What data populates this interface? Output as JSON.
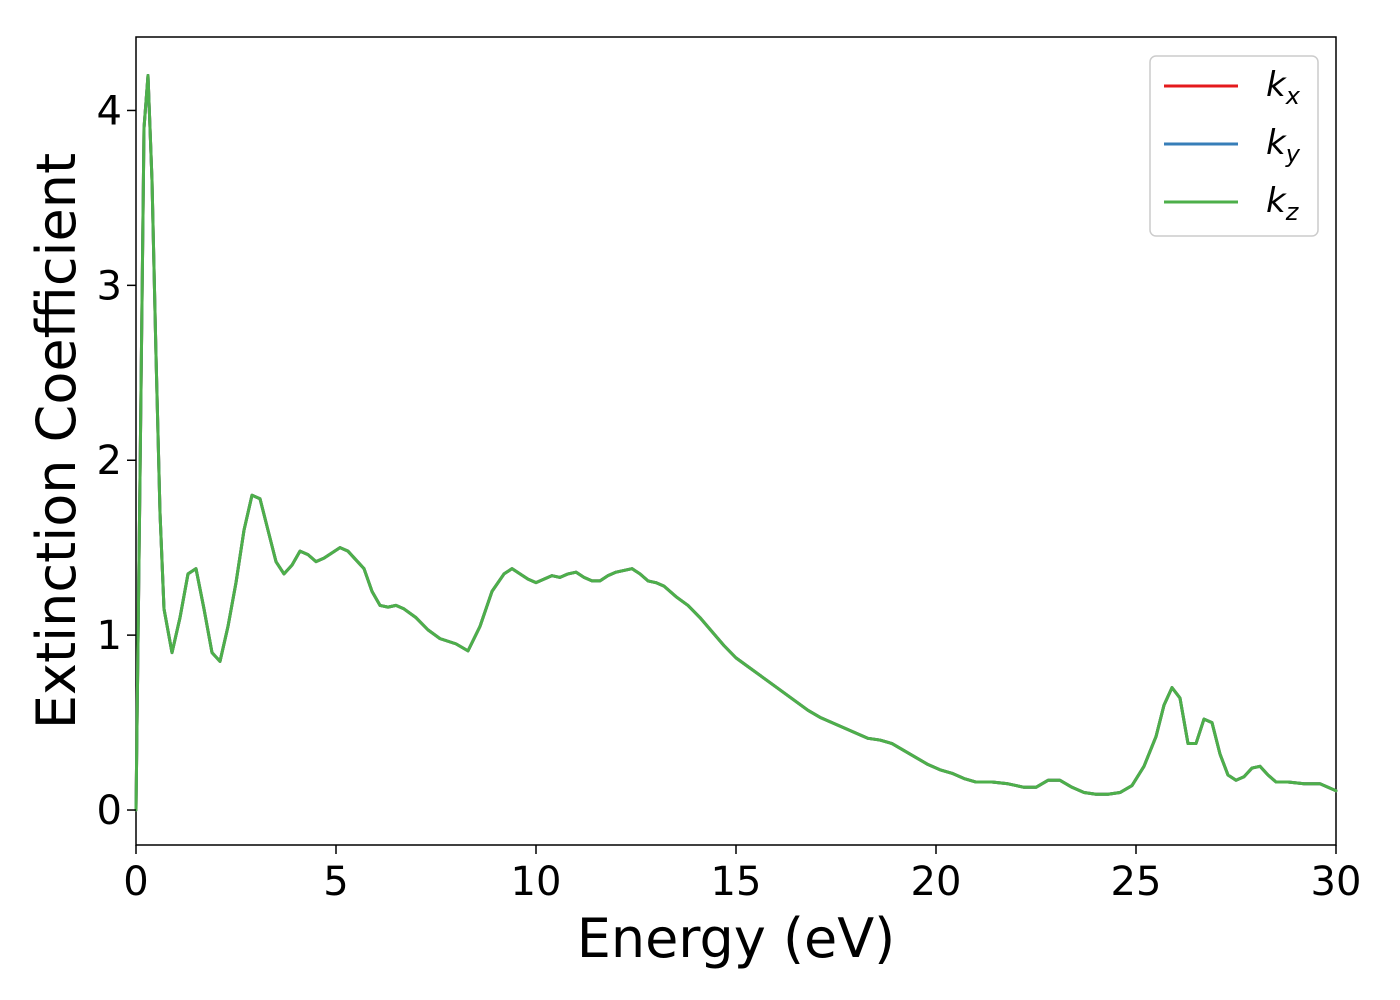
{
  "chart_data": {
    "type": "line",
    "xlabel": "Energy (eV)",
    "ylabel": "Extinction Coefficient",
    "xlim": [
      0,
      30
    ],
    "ylim": [
      -0.2,
      4.42
    ],
    "xticks": [
      0,
      5,
      10,
      15,
      20,
      25,
      30
    ],
    "yticks": [
      0,
      1,
      2,
      3,
      4
    ],
    "grid": false,
    "legend_position": "top-right",
    "x": [
      0,
      0.1,
      0.2,
      0.3,
      0.4,
      0.5,
      0.6,
      0.7,
      0.9,
      1.1,
      1.3,
      1.5,
      1.7,
      1.9,
      2.1,
      2.3,
      2.5,
      2.7,
      2.9,
      3.1,
      3.3,
      3.5,
      3.7,
      3.9,
      4.1,
      4.3,
      4.5,
      4.7,
      4.9,
      5.1,
      5.3,
      5.5,
      5.7,
      5.9,
      6.1,
      6.3,
      6.5,
      6.7,
      7.0,
      7.3,
      7.6,
      8.0,
      8.3,
      8.6,
      8.9,
      9.2,
      9.4,
      9.6,
      9.8,
      10.0,
      10.2,
      10.4,
      10.6,
      10.8,
      11.0,
      11.2,
      11.4,
      11.6,
      11.8,
      12.0,
      12.2,
      12.4,
      12.6,
      12.8,
      13.0,
      13.2,
      13.5,
      13.8,
      14.1,
      14.4,
      14.7,
      15.0,
      15.3,
      15.6,
      15.9,
      16.2,
      16.5,
      16.8,
      17.1,
      17.4,
      17.7,
      18.0,
      18.3,
      18.6,
      18.9,
      19.2,
      19.5,
      19.8,
      20.1,
      20.4,
      20.7,
      21.0,
      21.4,
      21.8,
      22.2,
      22.5,
      22.8,
      23.1,
      23.4,
      23.7,
      24.0,
      24.3,
      24.6,
      24.9,
      25.2,
      25.5,
      25.7,
      25.9,
      26.1,
      26.3,
      26.5,
      26.7,
      26.9,
      27.1,
      27.3,
      27.5,
      27.7,
      27.9,
      28.1,
      28.3,
      28.5,
      28.8,
      29.2,
      29.6,
      30.0
    ],
    "series": [
      {
        "name": "k_x",
        "color": "#e41a1c",
        "y": [
          0.0,
          1.9,
          3.9,
          4.2,
          3.6,
          2.6,
          1.7,
          1.15,
          0.9,
          1.1,
          1.35,
          1.38,
          1.15,
          0.9,
          0.85,
          1.05,
          1.3,
          1.6,
          1.8,
          1.78,
          1.6,
          1.42,
          1.35,
          1.4,
          1.48,
          1.46,
          1.42,
          1.44,
          1.47,
          1.5,
          1.48,
          1.43,
          1.38,
          1.25,
          1.17,
          1.16,
          1.17,
          1.15,
          1.1,
          1.03,
          0.98,
          0.95,
          0.91,
          1.05,
          1.25,
          1.35,
          1.38,
          1.35,
          1.32,
          1.3,
          1.32,
          1.34,
          1.33,
          1.35,
          1.36,
          1.33,
          1.31,
          1.31,
          1.34,
          1.36,
          1.37,
          1.38,
          1.35,
          1.31,
          1.3,
          1.28,
          1.22,
          1.17,
          1.1,
          1.02,
          0.94,
          0.87,
          0.82,
          0.77,
          0.72,
          0.67,
          0.62,
          0.57,
          0.53,
          0.5,
          0.47,
          0.44,
          0.41,
          0.4,
          0.38,
          0.34,
          0.3,
          0.26,
          0.23,
          0.21,
          0.18,
          0.16,
          0.16,
          0.15,
          0.13,
          0.13,
          0.17,
          0.17,
          0.13,
          0.1,
          0.09,
          0.09,
          0.1,
          0.14,
          0.25,
          0.42,
          0.6,
          0.7,
          0.64,
          0.38,
          0.38,
          0.52,
          0.5,
          0.32,
          0.2,
          0.17,
          0.19,
          0.24,
          0.25,
          0.2,
          0.16,
          0.16,
          0.15,
          0.15,
          0.11
        ]
      },
      {
        "name": "k_y",
        "color": "#377eb8",
        "y": [
          0.0,
          1.9,
          3.9,
          4.2,
          3.6,
          2.6,
          1.7,
          1.15,
          0.9,
          1.1,
          1.35,
          1.38,
          1.15,
          0.9,
          0.85,
          1.05,
          1.3,
          1.6,
          1.8,
          1.78,
          1.6,
          1.42,
          1.35,
          1.4,
          1.48,
          1.46,
          1.42,
          1.44,
          1.47,
          1.5,
          1.48,
          1.43,
          1.38,
          1.25,
          1.17,
          1.16,
          1.17,
          1.15,
          1.1,
          1.03,
          0.98,
          0.95,
          0.91,
          1.05,
          1.25,
          1.35,
          1.38,
          1.35,
          1.32,
          1.3,
          1.32,
          1.34,
          1.33,
          1.35,
          1.36,
          1.33,
          1.31,
          1.31,
          1.34,
          1.36,
          1.37,
          1.38,
          1.35,
          1.31,
          1.3,
          1.28,
          1.22,
          1.17,
          1.1,
          1.02,
          0.94,
          0.87,
          0.82,
          0.77,
          0.72,
          0.67,
          0.62,
          0.57,
          0.53,
          0.5,
          0.47,
          0.44,
          0.41,
          0.4,
          0.38,
          0.34,
          0.3,
          0.26,
          0.23,
          0.21,
          0.18,
          0.16,
          0.16,
          0.15,
          0.13,
          0.13,
          0.17,
          0.17,
          0.13,
          0.1,
          0.09,
          0.09,
          0.1,
          0.14,
          0.25,
          0.42,
          0.6,
          0.7,
          0.64,
          0.38,
          0.38,
          0.52,
          0.5,
          0.32,
          0.2,
          0.17,
          0.19,
          0.24,
          0.25,
          0.2,
          0.16,
          0.16,
          0.15,
          0.15,
          0.11
        ]
      },
      {
        "name": "k_z",
        "color": "#4daf4a",
        "y": [
          0.0,
          1.9,
          3.9,
          4.2,
          3.6,
          2.6,
          1.7,
          1.15,
          0.9,
          1.1,
          1.35,
          1.38,
          1.15,
          0.9,
          0.85,
          1.05,
          1.3,
          1.6,
          1.8,
          1.78,
          1.6,
          1.42,
          1.35,
          1.4,
          1.48,
          1.46,
          1.42,
          1.44,
          1.47,
          1.5,
          1.48,
          1.43,
          1.38,
          1.25,
          1.17,
          1.16,
          1.17,
          1.15,
          1.1,
          1.03,
          0.98,
          0.95,
          0.91,
          1.05,
          1.25,
          1.35,
          1.38,
          1.35,
          1.32,
          1.3,
          1.32,
          1.34,
          1.33,
          1.35,
          1.36,
          1.33,
          1.31,
          1.31,
          1.34,
          1.36,
          1.37,
          1.38,
          1.35,
          1.31,
          1.3,
          1.28,
          1.22,
          1.17,
          1.1,
          1.02,
          0.94,
          0.87,
          0.82,
          0.77,
          0.72,
          0.67,
          0.62,
          0.57,
          0.53,
          0.5,
          0.47,
          0.44,
          0.41,
          0.4,
          0.38,
          0.34,
          0.3,
          0.26,
          0.23,
          0.21,
          0.18,
          0.16,
          0.16,
          0.15,
          0.13,
          0.13,
          0.17,
          0.17,
          0.13,
          0.1,
          0.09,
          0.09,
          0.1,
          0.14,
          0.25,
          0.42,
          0.6,
          0.7,
          0.64,
          0.38,
          0.38,
          0.52,
          0.5,
          0.32,
          0.2,
          0.17,
          0.19,
          0.24,
          0.25,
          0.2,
          0.16,
          0.16,
          0.15,
          0.15,
          0.11
        ]
      }
    ],
    "legend": [
      {
        "base": "k",
        "sub": "x",
        "color": "#e41a1c"
      },
      {
        "base": "k",
        "sub": "y",
        "color": "#377eb8"
      },
      {
        "base": "k",
        "sub": "z",
        "color": "#4daf4a"
      }
    ]
  }
}
